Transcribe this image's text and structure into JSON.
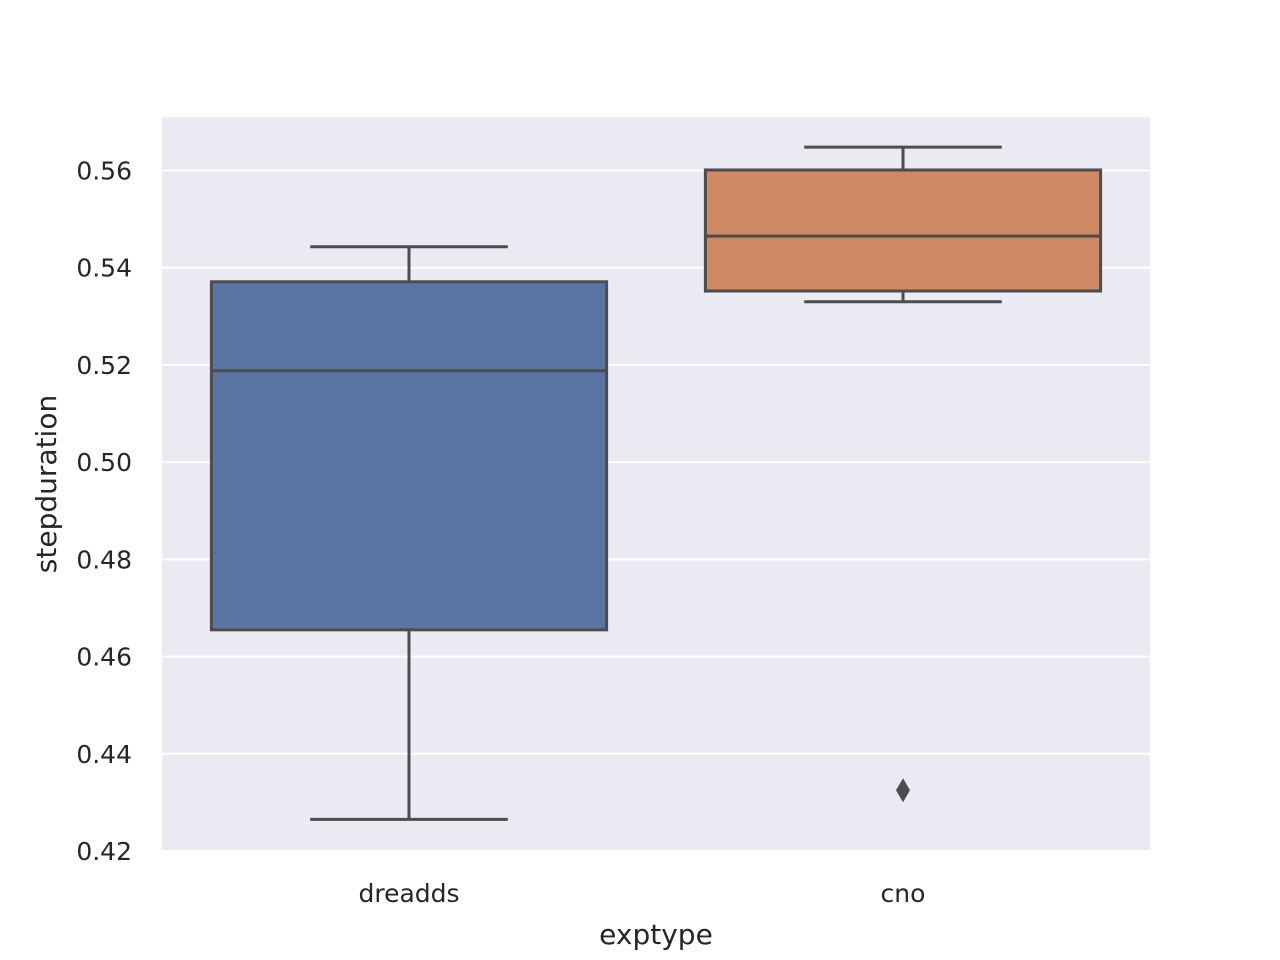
{
  "chart_data": {
    "type": "box",
    "title": "",
    "xlabel": "exptype",
    "ylabel": "stepduration",
    "categories": [
      "dreadds",
      "cno"
    ],
    "ylim": [
      0.42,
      0.571
    ],
    "yticks": [
      0.42,
      0.44,
      0.46,
      0.48,
      0.5,
      0.52,
      0.54,
      0.56
    ],
    "ytick_labels": [
      "0.42",
      "0.44",
      "0.46",
      "0.48",
      "0.50",
      "0.52",
      "0.54",
      "0.56"
    ],
    "grid": true,
    "legend": "none",
    "boxes": [
      {
        "category": "dreadds",
        "whisker_low": 0.4265,
        "q1": 0.4655,
        "median": 0.5188,
        "q3": 0.5371,
        "whisker_high": 0.5443,
        "outliers": []
      },
      {
        "category": "cno",
        "whisker_low": 0.533,
        "q1": 0.5352,
        "median": 0.5465,
        "q3": 0.5601,
        "whisker_high": 0.5648,
        "outliers": [
          0.4325
        ]
      }
    ],
    "colors": {
      "background": "#eaeaf2",
      "grid": "#ffffff",
      "line": "#4d4d4d",
      "boxes": [
        "#5875a4",
        "#cc8963"
      ]
    }
  }
}
